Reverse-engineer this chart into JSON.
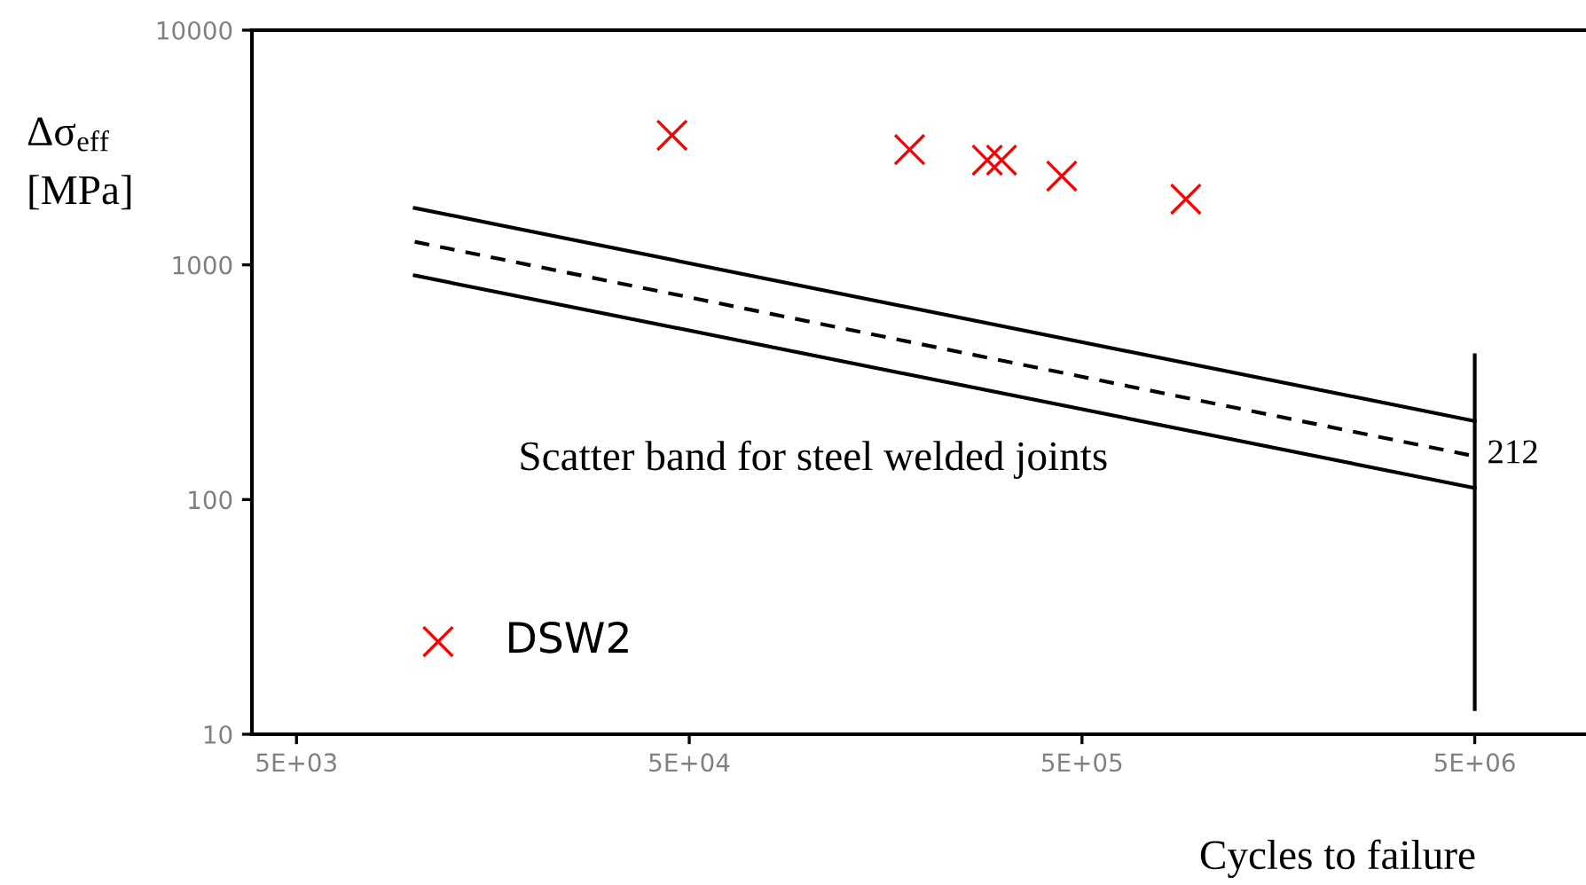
{
  "chart_data": {
    "type": "scatter",
    "xlabel": "Cycles to failure",
    "ylabel": "Δσ$_{eff}$\n[MPa]",
    "log": "xy",
    "xlim": [
      3850,
      9500000
    ],
    "ylim": [
      10,
      10000
    ],
    "xticks": [
      {
        "value": 5000,
        "label": "5E+03"
      },
      {
        "value": 50000,
        "label": "5E+04"
      },
      {
        "value": 500000,
        "label": "5E+05"
      },
      {
        "value": 5000000,
        "label": "5E+06"
      }
    ],
    "yticks": [
      10,
      100,
      1000,
      10000
    ],
    "grid": false,
    "legend": "bottom left",
    "series": [
      {
        "name": "DSW2",
        "marker": "cross",
        "color": "#ff0000",
        "x": [
          45200,
          182000,
          287000,
          312000,
          444000,
          919000
        ],
        "values": [
          3565,
          3097,
          2793,
          2793,
          2388,
          1905
        ]
      },
      {
        "type": "line",
        "color": "#000000",
        "marker": "none",
        "line_style": "solid",
        "x": [
          10000,
          5000000
        ],
        "values": [
          1746,
          216
        ]
      },
      {
        "type": "line",
        "color": "#000000",
        "marker": "none",
        "line_style": "dashed",
        "x": [
          10000,
          5000000
        ],
        "values": [
          1254,
          153
        ]
      },
      {
        "type": "line",
        "color": "#000000",
        "marker": "none",
        "line_style": "solid",
        "x": [
          10000,
          5000000
        ],
        "values": [
          901,
          112
        ]
      },
      {
        "type": "line",
        "color": "#000000",
        "marker": "none",
        "line_style": "solid",
        "x": [
          5000000,
          5000000
        ],
        "values": [
          412,
          12.8
        ]
      }
    ],
    "annotations": [
      "Scatter band for steel welded joints",
      {
        "text": "212",
        "x": 5000000,
        "y": 133
      }
    ]
  }
}
